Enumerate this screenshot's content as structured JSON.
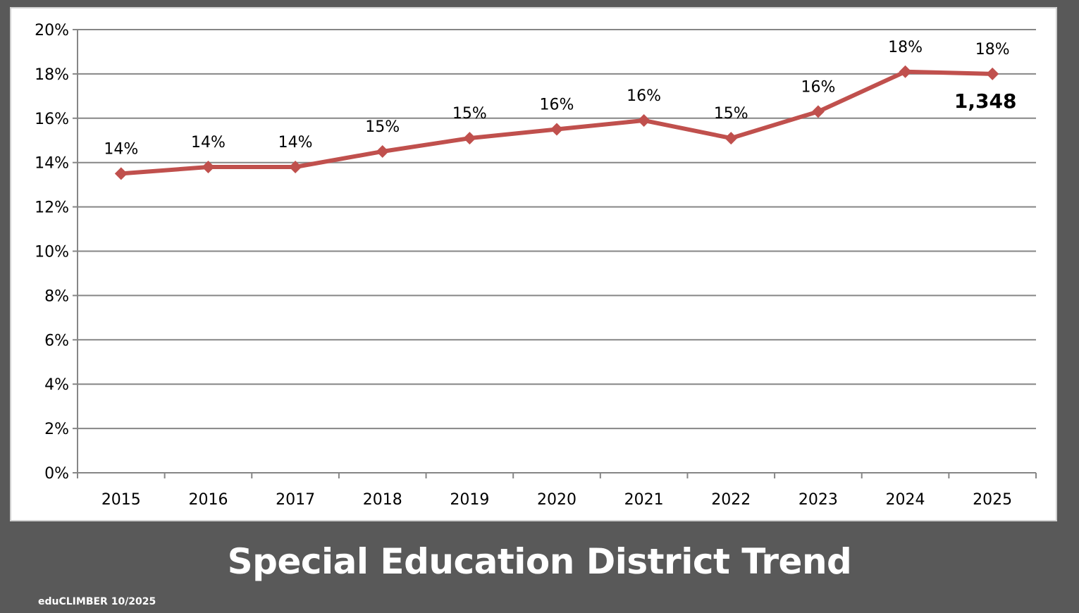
{
  "page": {
    "title": "Special Education District Trend",
    "footer": "eduCLIMBER 10/2025"
  },
  "colors": {
    "background": "#595959",
    "panel": "#ffffff",
    "line": "#c0504d",
    "grid": "#868686"
  },
  "chart_data": {
    "type": "line",
    "categories": [
      "2015",
      "2016",
      "2017",
      "2018",
      "2019",
      "2020",
      "2021",
      "2022",
      "2023",
      "2024",
      "2025"
    ],
    "series": [
      {
        "values": [
          13.5,
          13.8,
          13.8,
          14.5,
          15.1,
          15.5,
          15.9,
          15.1,
          16.3,
          18.1,
          18.0
        ],
        "data_labels": [
          "14%",
          "14%",
          "14%",
          "15%",
          "15%",
          "16%",
          "16%",
          "15%",
          "16%",
          "18%",
          "18%"
        ]
      }
    ],
    "annotations": [
      {
        "category": "2025",
        "text": "1,348"
      }
    ],
    "y_ticks": [
      "0%",
      "2%",
      "4%",
      "6%",
      "8%",
      "10%",
      "12%",
      "14%",
      "16%",
      "18%",
      "20%"
    ],
    "ylim": [
      0,
      20
    ],
    "grid": true,
    "legend": "none",
    "title": "",
    "xlabel": "",
    "ylabel": ""
  }
}
